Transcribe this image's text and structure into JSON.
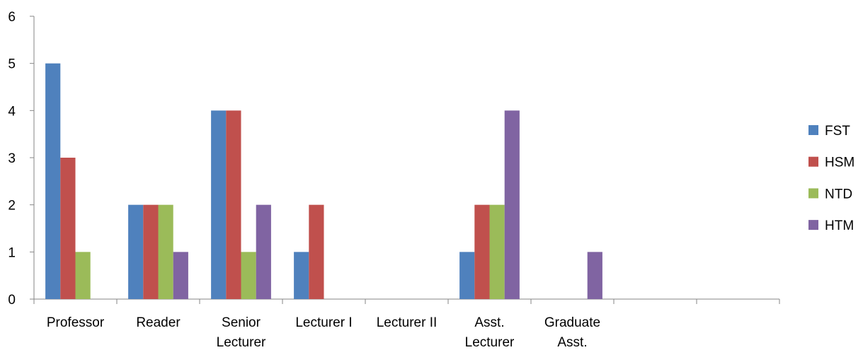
{
  "chart_data": {
    "type": "bar",
    "title": "",
    "xlabel": "",
    "ylabel": "",
    "ylim": [
      0,
      6
    ],
    "yticks": [
      0,
      1,
      2,
      3,
      4,
      5,
      6
    ],
    "grid": false,
    "legend_position": "right",
    "categories": [
      [
        "Professor"
      ],
      [
        "Reader"
      ],
      [
        "Senior",
        "Lecturer"
      ],
      [
        "Lecturer I"
      ],
      [
        "Lecturer II"
      ],
      [
        "Asst.",
        "Lecturer"
      ],
      [
        "Graduate",
        "Asst."
      ],
      [
        ""
      ],
      [
        ""
      ]
    ],
    "series": [
      {
        "name": "FST",
        "color": "#4F81BD",
        "values": [
          5,
          2,
          4,
          1,
          0,
          1,
          0,
          0,
          0
        ]
      },
      {
        "name": "HSM",
        "color": "#C0504D",
        "values": [
          3,
          2,
          4,
          2,
          0,
          2,
          0,
          0,
          0
        ]
      },
      {
        "name": "NTD",
        "color": "#9BBB59",
        "values": [
          1,
          2,
          1,
          0,
          0,
          2,
          0,
          0,
          0
        ]
      },
      {
        "name": "HTM",
        "color": "#8064A2",
        "values": [
          0,
          1,
          2,
          0,
          0,
          4,
          1,
          0,
          0
        ]
      }
    ]
  }
}
